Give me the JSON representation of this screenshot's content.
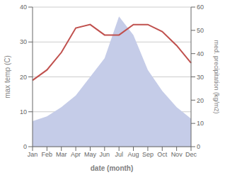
{
  "chart_data": {
    "type": "line",
    "categories": [
      "Jan",
      "Feb",
      "Mar",
      "Apr",
      "May",
      "Jun",
      "Jul",
      "Aug",
      "Sep",
      "Oct",
      "Nov",
      "Dec"
    ],
    "xlabel": "date (month)",
    "ylabel": "max temp (C)",
    "y2label": "med. precipitation (kg/m2)",
    "series": [
      {
        "type": "area",
        "axis": "y2",
        "color": "#c5cce8",
        "values": [
          11,
          13,
          17,
          22,
          30,
          38,
          56,
          48,
          33,
          24,
          17,
          12
        ]
      },
      {
        "type": "line",
        "color": "#c0504d",
        "values": [
          19,
          22,
          27,
          34,
          35,
          32,
          32,
          35,
          35,
          33,
          29,
          24
        ]
      }
    ],
    "ylim": [
      0,
      40
    ],
    "yticks": [
      0,
      10,
      20,
      30,
      40
    ],
    "y2lim": [
      0,
      60
    ],
    "y2ticks": [
      0,
      10,
      20,
      30,
      40,
      50,
      60
    ],
    "grid": true
  }
}
